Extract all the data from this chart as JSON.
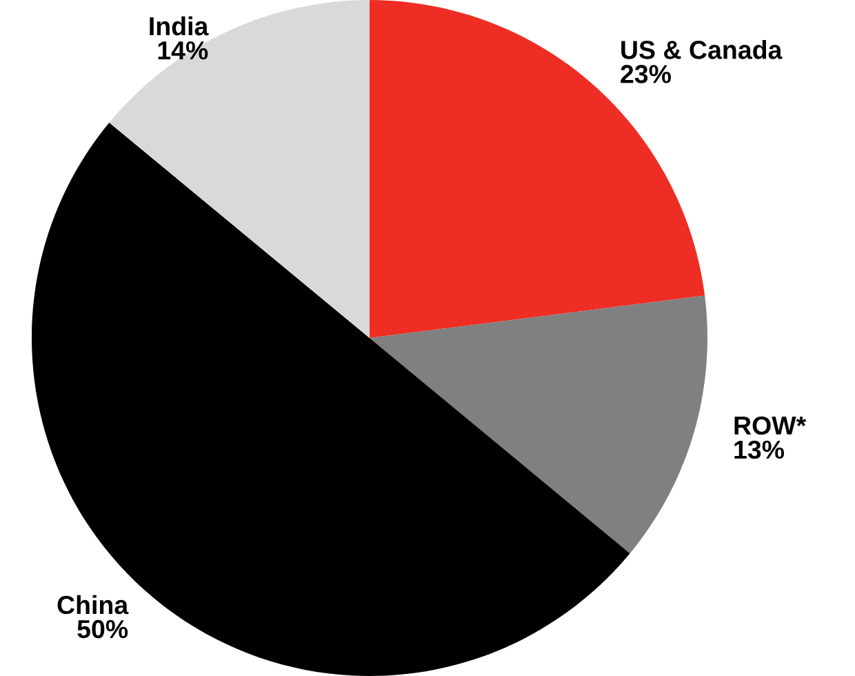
{
  "chart_data": {
    "type": "pie",
    "categories": [
      "US & Canada",
      "ROW*",
      "China",
      "India"
    ],
    "values": [
      23,
      13,
      50,
      14
    ],
    "colors": [
      "#ee2e24",
      "#808080",
      "#000000",
      "#d9d9d9"
    ],
    "value_labels": [
      "23%",
      "13%",
      "50%",
      "14%"
    ]
  }
}
